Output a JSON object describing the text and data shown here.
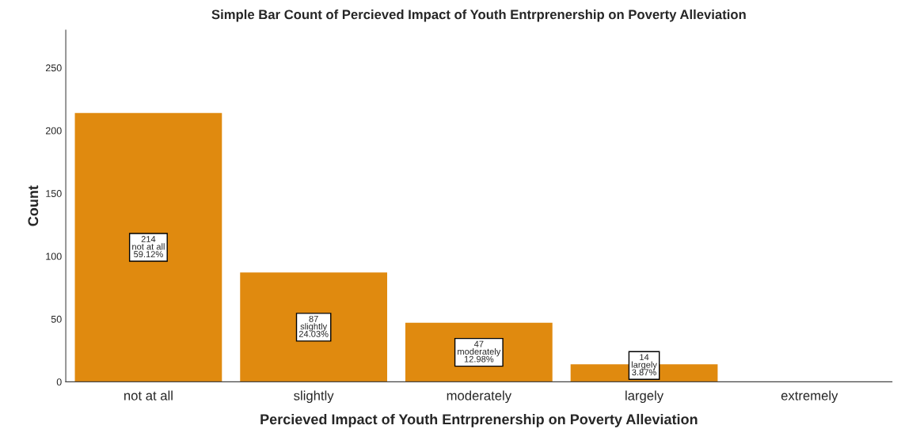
{
  "chart_data": {
    "type": "bar",
    "title": "Simple Bar Count of Percieved Impact of Youth Entrprenership on Poverty Alleviation",
    "xlabel": "Percieved Impact of Youth Entrprenership on Poverty Alleviation",
    "ylabel": "Count",
    "categories": [
      "not at all",
      "slightly",
      "moderately",
      "largely",
      "extremely"
    ],
    "values": [
      214,
      87,
      47,
      14,
      0
    ],
    "value_labels": [
      "214\nnot at all\n59.12%",
      "87\nslightly\n24.03%",
      "47\nmoderately\n12.98%",
      "14\nlargely\n3.87%",
      null
    ],
    "color": "#e08a0f",
    "ylim": [
      0,
      280
    ],
    "yticks": [
      0,
      50,
      100,
      150,
      200,
      250
    ],
    "grid": false,
    "legend": false
  }
}
